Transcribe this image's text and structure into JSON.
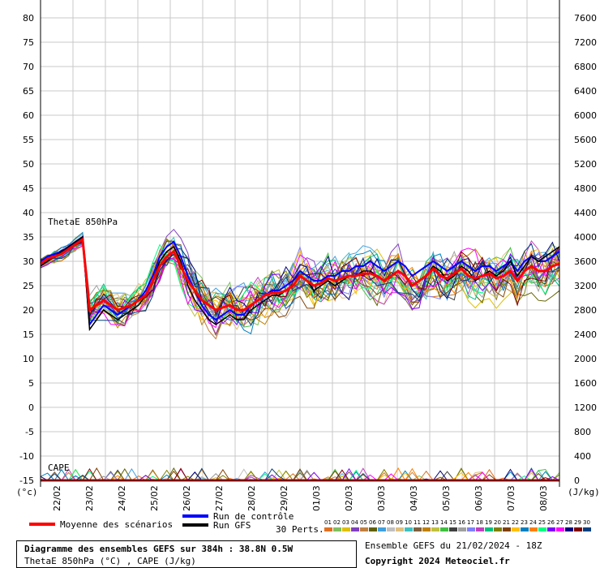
{
  "chart_data": {
    "type": "line",
    "left_axis": {
      "unit_label": "(°c)",
      "ticks": [
        80,
        75,
        70,
        65,
        60,
        55,
        50,
        45,
        40,
        35,
        30,
        25,
        20,
        15,
        10,
        5,
        0,
        -5,
        -10,
        -15
      ],
      "range": [
        -15,
        80
      ]
    },
    "right_axis": {
      "unit_label": "(J/kg)",
      "ticks": [
        7600,
        7200,
        6800,
        6400,
        6000,
        5600,
        5200,
        4800,
        4400,
        4000,
        3600,
        3200,
        2800,
        2400,
        2000,
        1600,
        1200,
        800,
        400,
        0
      ],
      "range": [
        0,
        7600
      ]
    },
    "x_ticks": [
      "22/02",
      "23/02",
      "24/02",
      "25/02",
      "26/02",
      "27/02",
      "28/02",
      "29/02",
      "01/03",
      "02/03",
      "03/03",
      "04/03",
      "05/03",
      "06/03",
      "07/03",
      "08/03"
    ],
    "panel_labels": {
      "thetae": "ThetaE 850hPa",
      "cape": "CAPE"
    },
    "series": [
      {
        "name": "Moyenne des scénarios",
        "color": "#ff0000",
        "values": [
          29.5,
          30.5,
          31,
          31.5,
          32.5,
          33.5,
          34.5,
          20,
          21,
          22,
          21,
          20,
          20.5,
          21,
          22,
          23,
          26,
          29,
          31,
          32,
          29,
          26,
          24,
          22,
          21,
          20,
          20.5,
          21,
          20,
          20,
          21,
          22,
          23,
          23.5,
          23.5,
          24,
          25,
          27,
          26,
          25,
          25.5,
          26.5,
          26,
          26.5,
          27,
          27,
          27.5,
          27.5,
          27,
          26,
          27,
          28,
          27,
          25,
          26,
          27,
          28.5,
          27,
          26.5,
          27.5,
          28.5,
          27,
          26.5,
          27,
          27.5,
          26.5,
          27,
          28,
          26,
          28,
          29,
          28,
          28,
          29,
          29.5
        ],
        "cape": [
          0,
          0,
          0,
          0,
          0,
          0,
          0,
          0,
          0,
          0,
          0,
          0,
          0,
          0,
          0,
          0,
          0,
          0,
          0,
          0,
          0,
          0,
          0,
          0,
          0,
          0,
          0,
          0,
          0,
          0,
          0,
          0,
          0,
          0,
          0,
          0,
          0,
          0,
          0,
          0,
          0,
          0,
          0,
          0,
          0,
          0,
          0,
          0,
          0,
          0,
          0,
          0,
          0,
          0,
          0,
          0,
          0,
          0,
          0,
          0,
          0,
          0,
          0,
          0,
          0,
          0,
          0,
          0,
          0,
          0,
          0,
          0,
          0,
          0,
          0
        ]
      },
      {
        "name": "Run de contrôle",
        "color": "#0000ff",
        "values": [
          30,
          31,
          31.5,
          32,
          33,
          34,
          35,
          17,
          19,
          21,
          20,
          19,
          20,
          21,
          22,
          24,
          27,
          31,
          33,
          34,
          31,
          27,
          24,
          21,
          19,
          18,
          19,
          20,
          19,
          19,
          21,
          22,
          23,
          24,
          24,
          25,
          26,
          28,
          27,
          26,
          26,
          27,
          27,
          28,
          28,
          29,
          29,
          30,
          29,
          28,
          29,
          30,
          29,
          27,
          28,
          29,
          30,
          29,
          28,
          29,
          30,
          29,
          28,
          29,
          29,
          28,
          29,
          30,
          28,
          30,
          31,
          30,
          30,
          31,
          32
        ],
        "cape": [
          0,
          0,
          0,
          0,
          0,
          0,
          0,
          0,
          0,
          0,
          0,
          0,
          0,
          0,
          0,
          0,
          0,
          0,
          0,
          0,
          0,
          0,
          0,
          0,
          0,
          0,
          0,
          0,
          0,
          0,
          0,
          0,
          0,
          0,
          0,
          0,
          0,
          0,
          0,
          0,
          0,
          0,
          0,
          0,
          0,
          0,
          0,
          0,
          0,
          0,
          0,
          0,
          0,
          0,
          0,
          0,
          0,
          0,
          0,
          0,
          0,
          0,
          0,
          0,
          0,
          0,
          0,
          0,
          0,
          0,
          0,
          0,
          0,
          0,
          0
        ]
      },
      {
        "name": "Run GFS",
        "color": "#000000",
        "values": [
          29,
          30,
          31,
          32,
          33,
          34,
          35,
          16,
          18,
          20,
          19,
          18,
          19,
          20,
          21,
          23,
          26,
          30,
          32,
          33,
          30,
          25,
          22,
          20,
          18,
          17,
          18,
          19,
          18,
          18,
          20,
          21,
          22,
          23,
          23,
          24,
          25,
          27,
          26,
          24,
          25,
          26,
          25,
          26,
          27,
          27,
          28,
          28,
          27,
          26,
          27,
          28,
          27,
          25,
          26,
          27,
          29,
          28,
          26,
          27,
          29,
          28,
          26,
          27,
          28,
          27,
          28,
          30,
          27,
          29,
          31,
          30,
          31,
          32,
          33
        ],
        "cape": [
          0,
          0,
          0,
          0,
          0,
          0,
          0,
          0,
          0,
          0,
          0,
          0,
          0,
          0,
          0,
          0,
          0,
          0,
          0,
          0,
          0,
          0,
          0,
          0,
          0,
          0,
          0,
          0,
          0,
          0,
          0,
          0,
          0,
          0,
          0,
          0,
          0,
          0,
          0,
          0,
          0,
          0,
          0,
          0,
          0,
          0,
          0,
          0,
          0,
          0,
          0,
          0,
          0,
          0,
          0,
          0,
          0,
          0,
          0,
          0,
          0,
          0,
          0,
          0,
          0,
          0,
          0,
          0,
          0,
          0,
          0,
          0,
          0,
          0,
          0
        ]
      }
    ],
    "perturbations": {
      "count": 30,
      "colors": [
        "#e07020",
        "#80c060",
        "#e0c000",
        "#8040c0",
        "#c08040",
        "#606000",
        "#40a0e0",
        "#c0c0c0",
        "#e0c080",
        "#40c0c0",
        "#806040",
        "#c08000",
        "#c0c040",
        "#40c040",
        "#404040",
        "#a0a0a0",
        "#8080ff",
        "#c040c0",
        "#00c080",
        "#808000",
        "#804000",
        "#ffc000",
        "#0080c0",
        "#ff8000",
        "#00ff80",
        "#8000ff",
        "#ff00ff",
        "#000080",
        "#800000",
        "#004080"
      ]
    },
    "legend": {
      "mean": "Moyenne des scénarios",
      "control": "Run de contrôle",
      "gfs": "Run GFS",
      "perts": "30 Perts.",
      "pert_numbers": [
        "01",
        "02",
        "03",
        "04",
        "05",
        "06",
        "07",
        "08",
        "09",
        "10",
        "11",
        "12",
        "13",
        "14",
        "15",
        "16",
        "17",
        "18",
        "19",
        "20",
        "21",
        "22",
        "23",
        "24",
        "25",
        "26",
        "27",
        "28",
        "29",
        "30"
      ]
    }
  },
  "footer": {
    "title": "Diagramme des ensembles GEFS sur 384h : 38.8N 0.5W",
    "subtitle": "ThetaE 850hPa (°C) , CAPE (J/kg)",
    "run_info": "Ensemble GEFS du 21/02/2024 - 18Z",
    "copyright": "Copyright 2024 Meteociel.fr"
  }
}
